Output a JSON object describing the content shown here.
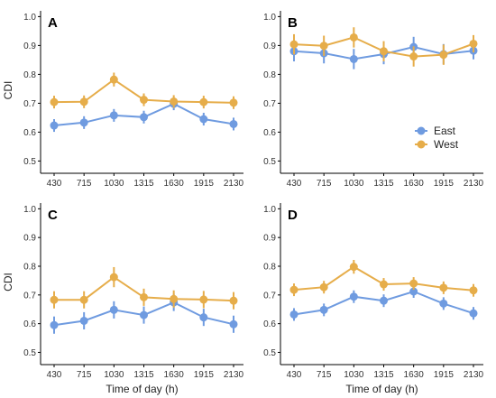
{
  "chart_data": [
    {
      "panel": "A",
      "type": "line",
      "categories": [
        "430",
        "715",
        "1030",
        "1315",
        "1630",
        "1915",
        "2130"
      ],
      "series": [
        {
          "name": "East",
          "values": [
            0.623,
            0.633,
            0.658,
            0.652,
            0.698,
            0.645,
            0.628
          ],
          "err": [
            0.022,
            0.022,
            0.022,
            0.022,
            0.022,
            0.022,
            0.022
          ]
        },
        {
          "name": "West",
          "values": [
            0.704,
            0.705,
            0.782,
            0.712,
            0.706,
            0.704,
            0.702
          ],
          "err": [
            0.022,
            0.022,
            0.024,
            0.022,
            0.022,
            0.022,
            0.022
          ]
        }
      ],
      "xlabel": "",
      "ylabel": "CDI",
      "yticks": [
        "0.5",
        "0.6",
        "0.7",
        "0.8",
        "0.9",
        "1.0"
      ],
      "ylim": [
        0.47,
        1.02
      ]
    },
    {
      "panel": "B",
      "type": "line",
      "categories": [
        "430",
        "715",
        "1030",
        "1315",
        "1630",
        "1915",
        "2130"
      ],
      "series": [
        {
          "name": "East",
          "values": [
            0.88,
            0.873,
            0.853,
            0.87,
            0.895,
            0.87,
            0.882
          ],
          "err": [
            0.035,
            0.035,
            0.035,
            0.035,
            0.035,
            0.035,
            0.03
          ]
        },
        {
          "name": "West",
          "values": [
            0.904,
            0.899,
            0.928,
            0.88,
            0.862,
            0.868,
            0.906
          ],
          "err": [
            0.035,
            0.035,
            0.035,
            0.035,
            0.035,
            0.035,
            0.03
          ]
        }
      ],
      "xlabel": "",
      "ylabel": "",
      "yticks": [
        "0.5",
        "0.6",
        "0.7",
        "0.8",
        "0.9",
        "1.0"
      ],
      "ylim": [
        0.47,
        1.02
      ]
    },
    {
      "panel": "C",
      "type": "line",
      "categories": [
        "430",
        "715",
        "1030",
        "1315",
        "1630",
        "1915",
        "2130"
      ],
      "series": [
        {
          "name": "East",
          "values": [
            0.595,
            0.61,
            0.648,
            0.63,
            0.674,
            0.622,
            0.598
          ],
          "err": [
            0.03,
            0.03,
            0.03,
            0.03,
            0.03,
            0.03,
            0.03
          ]
        },
        {
          "name": "West",
          "values": [
            0.683,
            0.683,
            0.762,
            0.692,
            0.686,
            0.684,
            0.68
          ],
          "err": [
            0.03,
            0.03,
            0.035,
            0.03,
            0.03,
            0.03,
            0.03
          ]
        }
      ],
      "xlabel": "Time of day (h)",
      "ylabel": "CDI",
      "yticks": [
        "0.5",
        "0.6",
        "0.7",
        "0.8",
        "0.9",
        "1.0"
      ],
      "ylim": [
        0.47,
        1.02
      ]
    },
    {
      "panel": "D",
      "type": "line",
      "categories": [
        "430",
        "715",
        "1030",
        "1315",
        "1630",
        "1915",
        "2130"
      ],
      "series": [
        {
          "name": "East",
          "values": [
            0.632,
            0.648,
            0.694,
            0.68,
            0.712,
            0.67,
            0.636
          ],
          "err": [
            0.022,
            0.022,
            0.022,
            0.022,
            0.022,
            0.022,
            0.022
          ]
        },
        {
          "name": "West",
          "values": [
            0.718,
            0.727,
            0.798,
            0.737,
            0.74,
            0.725,
            0.716
          ],
          "err": [
            0.022,
            0.022,
            0.024,
            0.022,
            0.022,
            0.022,
            0.022
          ]
        }
      ],
      "xlabel": "Time of day (h)",
      "ylabel": "",
      "yticks": [
        "0.5",
        "0.6",
        "0.7",
        "0.8",
        "0.9",
        "1.0"
      ],
      "ylim": [
        0.47,
        1.02
      ]
    }
  ],
  "legend": {
    "placement": "inside panel B, right",
    "entries": [
      {
        "label": "East",
        "color": "#6f9be0"
      },
      {
        "label": "West",
        "color": "#e6ad4a"
      }
    ]
  },
  "colors": {
    "East": "#6f9be0",
    "West": "#e6ad4a",
    "axis": "#000000"
  }
}
